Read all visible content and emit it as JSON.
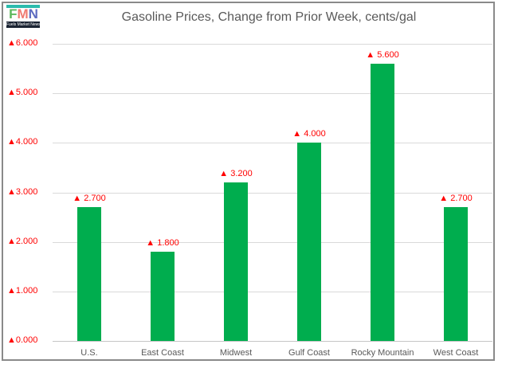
{
  "logo": {
    "letters": [
      "F",
      "M",
      "N"
    ],
    "letter_colors": [
      "#5cb85c",
      "#ef7b72",
      "#5c6bc0"
    ],
    "accent_color": "#2bbbad",
    "band_color": "#1b2433",
    "tagline": "Fuels Market News"
  },
  "chart_data": {
    "type": "bar",
    "title": "Gasoline Prices, Change from Prior Week, cents/gal",
    "categories": [
      "U.S.",
      "East Coast",
      "Midwest",
      "Gulf Coast",
      "Rocky Mountain",
      "West Coast"
    ],
    "values": [
      2.7,
      1.8,
      3.2,
      4.0,
      5.6,
      2.7
    ],
    "bar_labels": [
      "▲ 2.700",
      "▲ 1.800",
      "▲ 3.200",
      "▲ 4.000",
      "▲ 5.600",
      "▲ 2.700"
    ],
    "ylim": [
      0,
      6
    ],
    "ytick_labels": [
      "▲0.000",
      "▲1.000",
      "▲2.000",
      "▲3.000",
      "▲4.000",
      "▲5.000",
      "▲6.000"
    ],
    "grid": true,
    "legend": "none",
    "bar_color": "#00ad4e",
    "label_color": "#ff0000",
    "axis_text_color": "#595959",
    "gridline_color": "#d9d9d9",
    "baseline_color": "#c6c6c6",
    "title_color": "#595959"
  }
}
